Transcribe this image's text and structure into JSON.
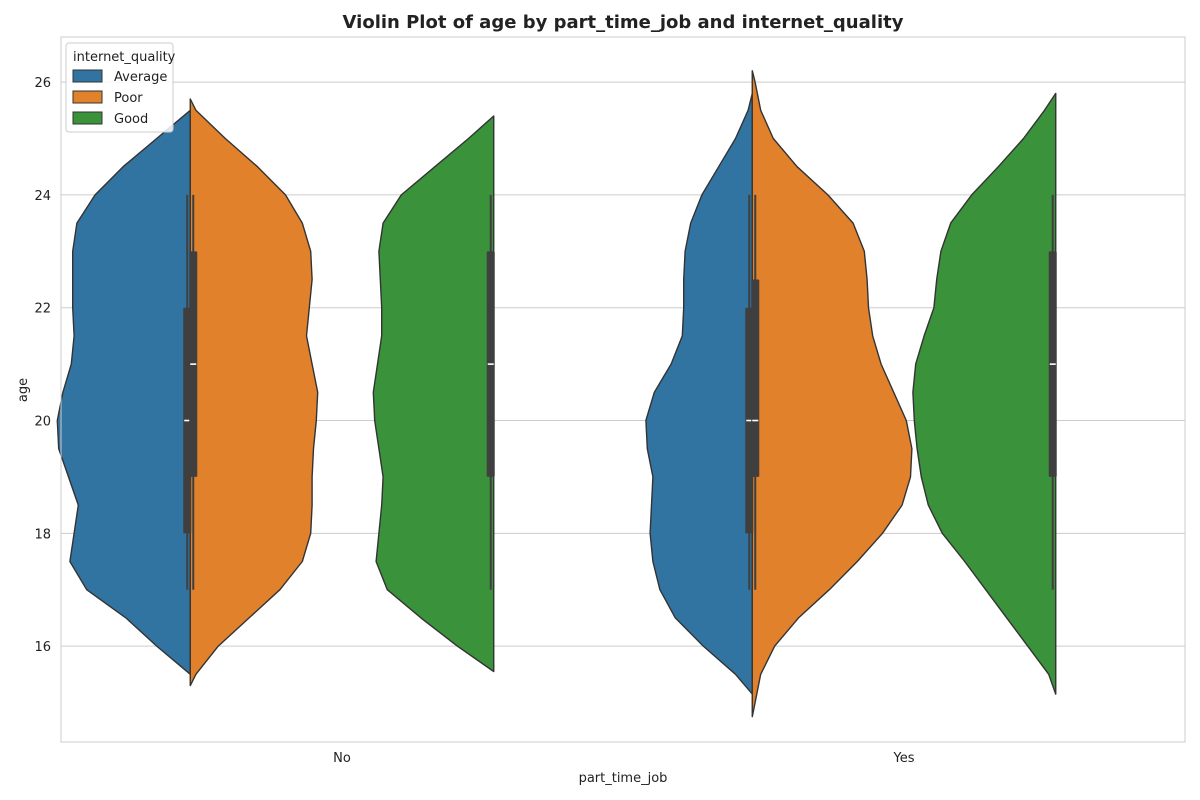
{
  "chart_data": {
    "type": "violin",
    "title": "Violin Plot of age by part_time_job and internet_quality",
    "xlabel": "part_time_job",
    "ylabel": "age",
    "categories": [
      "No",
      "Yes"
    ],
    "ylim": [
      14.3,
      26.8
    ],
    "yticks": [
      16,
      18,
      20,
      22,
      24,
      26
    ],
    "grid": true,
    "legend": {
      "title": "internet_quality",
      "placement": "top-left",
      "entries": [
        "Average",
        "Poor",
        "Good"
      ]
    },
    "colors": {
      "Average": "#3274a1",
      "Poor": "#e1812c",
      "Good": "#3a923a",
      "outline": "#333333",
      "box": "#3f3f3f",
      "grid": "#cccccc"
    },
    "series": [
      {
        "name": "Average",
        "violins": [
          {
            "category": "No",
            "side": "left",
            "slot": 0,
            "min": 17,
            "q1": 18,
            "median": 20,
            "q3": 22,
            "max": 24,
            "density": [
              [
                15.5,
                0.0
              ],
              [
                16.0,
                0.24
              ],
              [
                16.5,
                0.46
              ],
              [
                17.0,
                0.74
              ],
              [
                17.5,
                0.86
              ],
              [
                18.0,
                0.83
              ],
              [
                18.5,
                0.8
              ],
              [
                19.0,
                0.87
              ],
              [
                19.5,
                0.94
              ],
              [
                20.0,
                0.95
              ],
              [
                20.5,
                0.91
              ],
              [
                21.0,
                0.85
              ],
              [
                21.5,
                0.83
              ],
              [
                22.0,
                0.84
              ],
              [
                22.5,
                0.84
              ],
              [
                23.0,
                0.84
              ],
              [
                23.5,
                0.81
              ],
              [
                24.0,
                0.68
              ],
              [
                24.5,
                0.48
              ],
              [
                25.0,
                0.24
              ],
              [
                25.5,
                0.0
              ]
            ]
          },
          {
            "category": "Yes",
            "side": "left",
            "slot": 0,
            "min": 17,
            "q1": 18,
            "median": 20,
            "q3": 22,
            "max": 24,
            "density": [
              [
                15.15,
                0.0
              ],
              [
                15.5,
                0.12
              ],
              [
                16.0,
                0.35
              ],
              [
                16.5,
                0.55
              ],
              [
                17.0,
                0.66
              ],
              [
                17.5,
                0.71
              ],
              [
                18.0,
                0.73
              ],
              [
                18.5,
                0.72
              ],
              [
                19.0,
                0.71
              ],
              [
                19.5,
                0.75
              ],
              [
                20.0,
                0.76
              ],
              [
                20.5,
                0.7
              ],
              [
                21.0,
                0.58
              ],
              [
                21.5,
                0.5
              ],
              [
                22.0,
                0.49
              ],
              [
                22.5,
                0.49
              ],
              [
                23.0,
                0.48
              ],
              [
                23.5,
                0.44
              ],
              [
                24.0,
                0.36
              ],
              [
                24.5,
                0.24
              ],
              [
                25.0,
                0.12
              ],
              [
                25.5,
                0.03
              ],
              [
                25.8,
                0.0
              ]
            ]
          }
        ]
      },
      {
        "name": "Poor",
        "violins": [
          {
            "category": "No",
            "side": "right",
            "slot": 0,
            "min": 17,
            "q1": 19,
            "median": 21,
            "q3": 23,
            "max": 24,
            "density": [
              [
                15.3,
                0.0
              ],
              [
                15.5,
                0.04
              ],
              [
                16.0,
                0.2
              ],
              [
                16.5,
                0.42
              ],
              [
                17.0,
                0.64
              ],
              [
                17.5,
                0.8
              ],
              [
                18.0,
                0.86
              ],
              [
                18.5,
                0.87
              ],
              [
                19.0,
                0.87
              ],
              [
                19.5,
                0.88
              ],
              [
                20.0,
                0.9
              ],
              [
                20.5,
                0.91
              ],
              [
                21.0,
                0.87
              ],
              [
                21.5,
                0.83
              ],
              [
                22.0,
                0.85
              ],
              [
                22.5,
                0.87
              ],
              [
                23.0,
                0.86
              ],
              [
                23.5,
                0.8
              ],
              [
                24.0,
                0.68
              ],
              [
                24.5,
                0.48
              ],
              [
                25.0,
                0.25
              ],
              [
                25.5,
                0.04
              ],
              [
                25.7,
                0.0
              ]
            ]
          },
          {
            "category": "Yes",
            "side": "right",
            "slot": 0,
            "min": 17,
            "q1": 19,
            "median": 20,
            "q3": 22.5,
            "max": 24,
            "density": [
              [
                14.75,
                0.0
              ],
              [
                15.0,
                0.02
              ],
              [
                15.5,
                0.06
              ],
              [
                16.0,
                0.16
              ],
              [
                16.5,
                0.33
              ],
              [
                17.0,
                0.55
              ],
              [
                17.5,
                0.75
              ],
              [
                18.0,
                0.93
              ],
              [
                18.5,
                1.07
              ],
              [
                19.0,
                1.13
              ],
              [
                19.5,
                1.14
              ],
              [
                20.0,
                1.1
              ],
              [
                20.5,
                1.01
              ],
              [
                21.0,
                0.92
              ],
              [
                21.5,
                0.86
              ],
              [
                22.0,
                0.83
              ],
              [
                22.5,
                0.82
              ],
              [
                23.0,
                0.8
              ],
              [
                23.5,
                0.72
              ],
              [
                24.0,
                0.54
              ],
              [
                24.5,
                0.32
              ],
              [
                25.0,
                0.15
              ],
              [
                25.5,
                0.06
              ],
              [
                26.0,
                0.02
              ],
              [
                26.2,
                0.0
              ]
            ]
          }
        ]
      },
      {
        "name": "Good",
        "violins": [
          {
            "category": "No",
            "side": "left",
            "slot": 1,
            "min": 17,
            "q1": 19,
            "median": 21,
            "q3": 23,
            "max": 24,
            "density": [
              [
                15.55,
                0.0
              ],
              [
                16.0,
                0.26
              ],
              [
                16.5,
                0.52
              ],
              [
                17.0,
                0.76
              ],
              [
                17.5,
                0.84
              ],
              [
                18.0,
                0.82
              ],
              [
                18.5,
                0.8
              ],
              [
                19.0,
                0.79
              ],
              [
                19.5,
                0.82
              ],
              [
                20.0,
                0.85
              ],
              [
                20.5,
                0.86
              ],
              [
                21.0,
                0.83
              ],
              [
                21.5,
                0.8
              ],
              [
                22.0,
                0.8
              ],
              [
                22.5,
                0.81
              ],
              [
                23.0,
                0.82
              ],
              [
                23.5,
                0.79
              ],
              [
                24.0,
                0.66
              ],
              [
                24.5,
                0.42
              ],
              [
                25.0,
                0.18
              ],
              [
                25.4,
                0.0
              ]
            ]
          },
          {
            "category": "Yes",
            "side": "left",
            "slot": 1,
            "min": 17,
            "q1": 19,
            "median": 21,
            "q3": 23,
            "max": 24,
            "density": [
              [
                15.15,
                0.0
              ],
              [
                15.5,
                0.05
              ],
              [
                16.0,
                0.2
              ],
              [
                16.5,
                0.35
              ],
              [
                17.0,
                0.5
              ],
              [
                17.5,
                0.65
              ],
              [
                18.0,
                0.81
              ],
              [
                18.5,
                0.91
              ],
              [
                19.0,
                0.96
              ],
              [
                19.5,
                0.99
              ],
              [
                20.0,
                1.01
              ],
              [
                20.5,
                1.02
              ],
              [
                21.0,
                1.0
              ],
              [
                21.5,
                0.94
              ],
              [
                22.0,
                0.87
              ],
              [
                22.5,
                0.85
              ],
              [
                23.0,
                0.82
              ],
              [
                23.5,
                0.75
              ],
              [
                24.0,
                0.6
              ],
              [
                24.5,
                0.41
              ],
              [
                25.0,
                0.23
              ],
              [
                25.5,
                0.08
              ],
              [
                25.8,
                0.0
              ]
            ]
          }
        ]
      }
    ]
  }
}
